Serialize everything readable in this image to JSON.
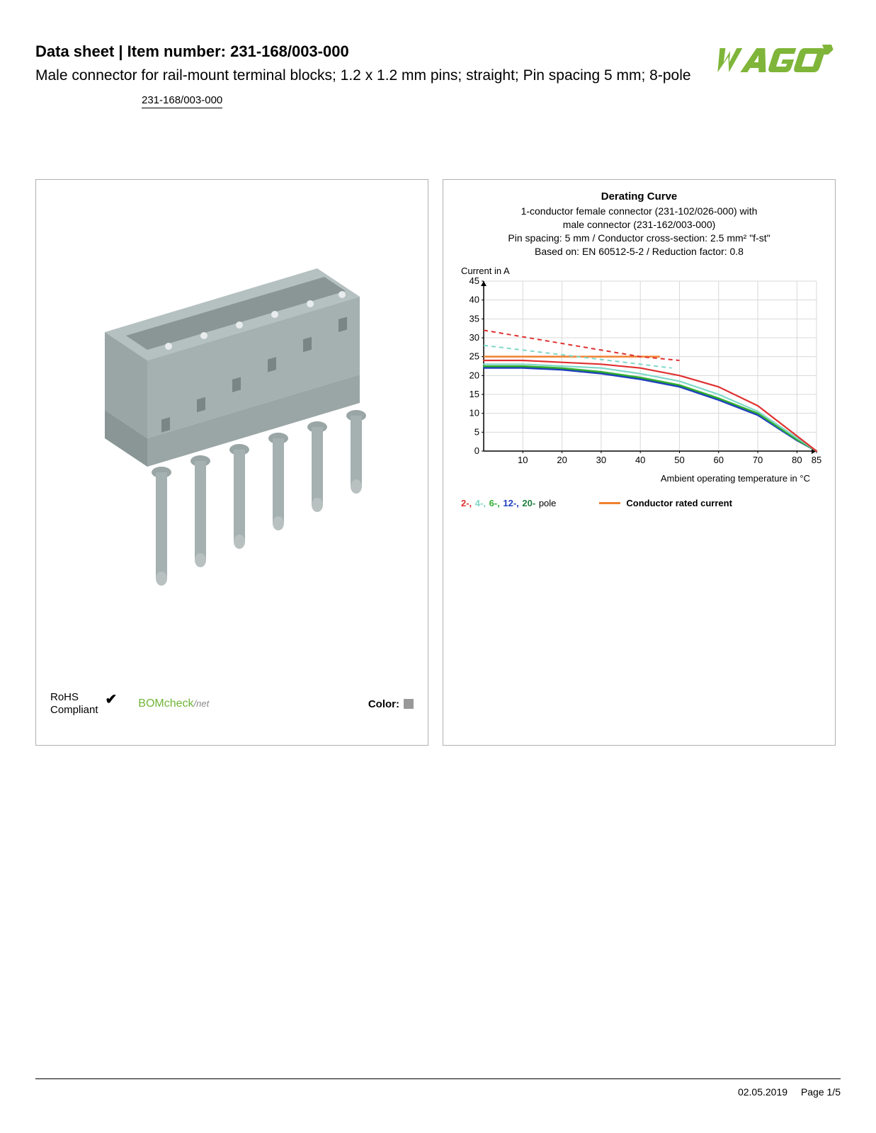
{
  "header": {
    "title_prefix": "Data sheet  |  Item number: ",
    "item_number": "231-168/003-000",
    "subtitle": "Male connector for rail-mount terminal blocks; 1.2 x 1.2 mm pins; straight; Pin spacing 5 mm; 8-pole",
    "item_number_link": "231-168/003-000"
  },
  "logo": {
    "text": "WAGO",
    "color": "#7fb539",
    "shadow_color": "#5a8a2a"
  },
  "product_image": {
    "body_color": "#a5b0b0",
    "body_shadow": "#8a9595",
    "pin_color": "#b8c0c0",
    "pin_tip": "#d5dada"
  },
  "compliance": {
    "rohs_line1": "RoHS",
    "rohs_line2": "Compliant",
    "bomcheck": "BOMcheck",
    "bomcheck_suffix": "/net",
    "color_label": "Color:",
    "swatch_color": "#999999"
  },
  "chart": {
    "title": "Derating Curve",
    "subtitle_line1": "1-conductor female connector (231-102/026-000) with",
    "subtitle_line2": "male connector (231-162/003-000)",
    "subtitle_line3": "Pin spacing: 5 mm / Conductor cross-section: 2.5 mm² \"f-st\"",
    "subtitle_line4": "Based on: EN 60512-5-2 / Reduction factor: 0.8",
    "y_label": "Current in A",
    "x_label": "Ambient operating temperature in °C",
    "y_max": 45,
    "y_ticks": [
      0,
      5,
      10,
      15,
      20,
      25,
      30,
      35,
      40,
      45
    ],
    "x_max": 85,
    "x_ticks": [
      10,
      20,
      30,
      40,
      50,
      60,
      70,
      80,
      85
    ],
    "grid_color": "#d8d8d8",
    "axis_color": "#000000",
    "series": {
      "pole_2": {
        "color": "#e03030",
        "solid": [
          [
            0,
            24
          ],
          [
            10,
            24
          ],
          [
            20,
            23.5
          ],
          [
            30,
            23
          ],
          [
            40,
            22
          ],
          [
            50,
            20
          ],
          [
            60,
            17
          ],
          [
            70,
            12
          ],
          [
            80,
            4
          ],
          [
            85,
            0
          ]
        ],
        "dash": [
          [
            0,
            32
          ],
          [
            40,
            25
          ],
          [
            50,
            24
          ]
        ]
      },
      "pole_4": {
        "color": "#7fd8c8",
        "solid": [
          [
            0,
            23
          ],
          [
            10,
            23
          ],
          [
            20,
            22.5
          ],
          [
            30,
            22
          ],
          [
            40,
            20.5
          ],
          [
            50,
            18.5
          ],
          [
            60,
            15
          ],
          [
            70,
            10.5
          ],
          [
            80,
            3.5
          ],
          [
            85,
            0
          ]
        ],
        "dash": [
          [
            0,
            28
          ],
          [
            40,
            23
          ],
          [
            48,
            22
          ]
        ]
      },
      "pole_6": {
        "color": "#30b030",
        "solid": [
          [
            0,
            22.5
          ],
          [
            10,
            22.5
          ],
          [
            20,
            22
          ],
          [
            30,
            21
          ],
          [
            40,
            19.5
          ],
          [
            50,
            17.5
          ],
          [
            60,
            14
          ],
          [
            70,
            10
          ],
          [
            80,
            3
          ],
          [
            85,
            0
          ]
        ]
      },
      "pole_12": {
        "color": "#2040c0",
        "solid": [
          [
            0,
            22
          ],
          [
            10,
            22
          ],
          [
            20,
            21.5
          ],
          [
            30,
            20.5
          ],
          [
            40,
            19
          ],
          [
            50,
            17
          ],
          [
            60,
            13.5
          ],
          [
            70,
            9.5
          ],
          [
            80,
            2.8
          ],
          [
            85,
            0
          ]
        ]
      },
      "pole_20": {
        "color": "#208040",
        "solid": [
          [
            0,
            22.2
          ],
          [
            10,
            22.2
          ],
          [
            20,
            21.7
          ],
          [
            30,
            20.7
          ],
          [
            40,
            19.2
          ],
          [
            50,
            17.2
          ],
          [
            60,
            13.7
          ],
          [
            70,
            9.7
          ],
          [
            80,
            2.9
          ],
          [
            85,
            0
          ]
        ]
      },
      "rated": {
        "color": "#f08030",
        "points": [
          [
            0,
            25
          ],
          [
            45,
            25
          ]
        ]
      }
    },
    "legend": {
      "poles": [
        {
          "label": "2-",
          "color": "#e03030"
        },
        {
          "label": "4-",
          "color": "#7fd8c8"
        },
        {
          "label": "6-",
          "color": "#30b030"
        },
        {
          "label": "12-",
          "color": "#2040c0"
        },
        {
          "label": "20-",
          "color": "#208040"
        }
      ],
      "poles_suffix": " pole",
      "rated_label": "Conductor rated current",
      "rated_color": "#f08030"
    }
  },
  "footer": {
    "date": "02.05.2019",
    "page": "Page 1/5"
  }
}
